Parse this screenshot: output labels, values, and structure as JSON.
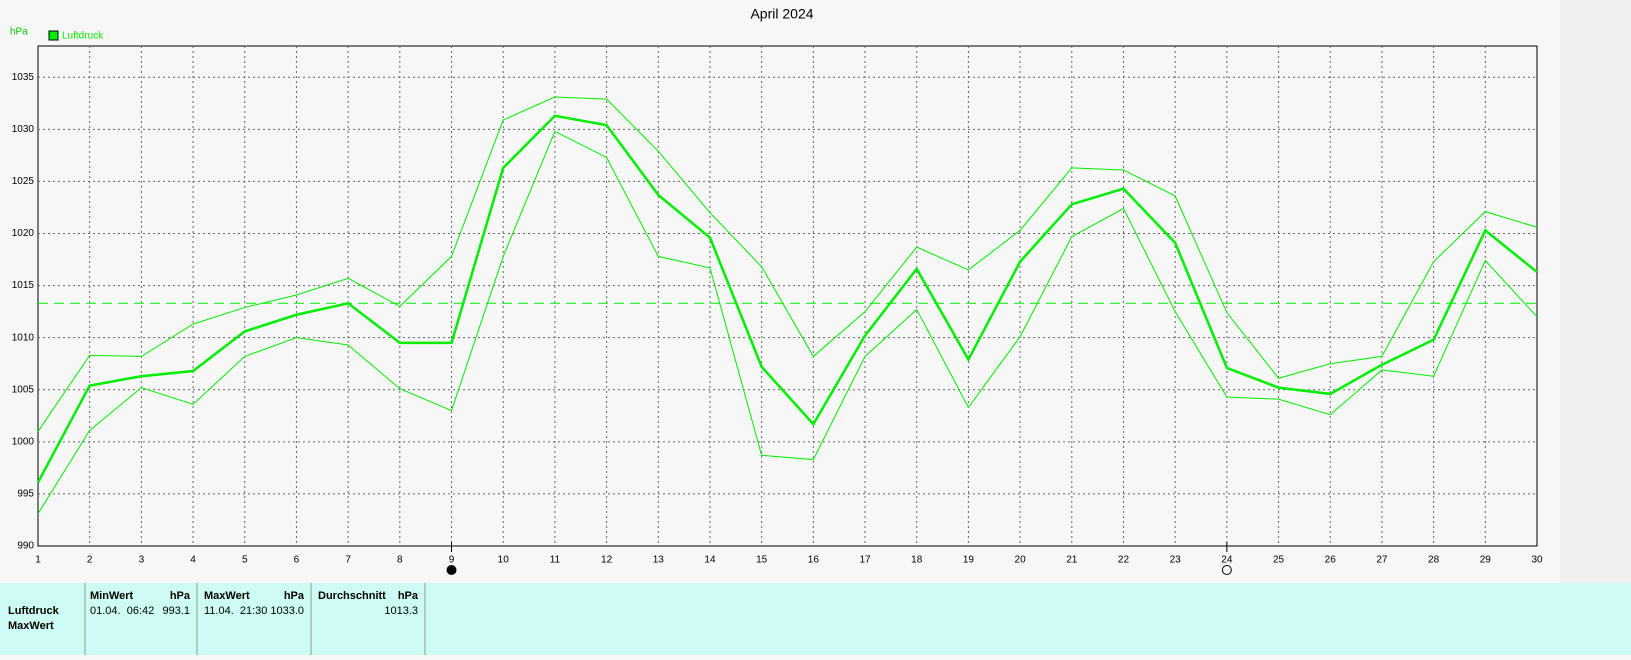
{
  "chart_data": {
    "type": "line",
    "title": "April 2024",
    "y_unit": "hPa",
    "x": [
      1,
      2,
      3,
      4,
      5,
      6,
      7,
      8,
      9,
      10,
      11,
      12,
      13,
      14,
      15,
      16,
      17,
      18,
      19,
      20,
      21,
      22,
      23,
      24,
      25,
      26,
      27,
      28,
      29,
      30
    ],
    "xlim": [
      1,
      30
    ],
    "xticks": [
      1,
      2,
      3,
      4,
      5,
      6,
      7,
      8,
      9,
      10,
      11,
      12,
      13,
      14,
      15,
      16,
      17,
      18,
      19,
      20,
      21,
      22,
      23,
      24,
      25,
      26,
      27,
      28,
      29,
      30
    ],
    "ylim": [
      990,
      1038
    ],
    "yticks": [
      990,
      995,
      1000,
      1005,
      1010,
      1015,
      1020,
      1025,
      1030,
      1035
    ],
    "grid": true,
    "legend": "top-left",
    "average": 1013.3,
    "series": [
      {
        "name": "Luftdruck",
        "color": "#00ee00",
        "values": [
          996.1,
          1005.4,
          1006.3,
          1006.8,
          1010.6,
          1012.2,
          1013.3,
          1009.5,
          1009.5,
          1026.3,
          1031.3,
          1030.4,
          1023.7,
          1019.6,
          1007.2,
          1001.7,
          1010.2,
          1016.6,
          1007.9,
          1017.3,
          1022.8,
          1024.3,
          1019.1,
          1007.1,
          1005.2,
          1004.6,
          1007.4,
          1009.8,
          1020.3,
          1016.3
        ]
      },
      {
        "color": "#00ee00",
        "values": [
          1001.0,
          1008.3,
          1008.2,
          1011.3,
          1012.9,
          1014.1,
          1015.7,
          1013.0,
          1017.8,
          1030.9,
          1033.1,
          1032.9,
          1027.9,
          1022.0,
          1016.8,
          1008.2,
          1012.5,
          1018.7,
          1016.5,
          1020.3,
          1026.3,
          1026.1,
          1023.6,
          1012.4,
          1006.1,
          1007.5,
          1008.2,
          1017.3,
          1022.1,
          1020.6
        ]
      },
      {
        "color": "#00ee00",
        "values": [
          993.1,
          1001.1,
          1005.2,
          1003.6,
          1008.2,
          1010.0,
          1009.3,
          1005.1,
          1003.0,
          1017.8,
          1029.8,
          1027.3,
          1017.8,
          1016.7,
          998.7,
          998.3,
          1008.2,
          1012.7,
          1003.3,
          1010.1,
          1019.7,
          1022.4,
          1012.5,
          1004.3,
          1004.1,
          1002.6,
          1006.9,
          1006.3,
          1017.4,
          1012.0
        ]
      }
    ]
  },
  "stats": {
    "headers": [
      [
        "MinWert",
        "hPa"
      ],
      [
        "MaxWert",
        "hPa"
      ],
      [
        "Durchschnitt",
        "hPa"
      ]
    ],
    "row_label": "Luftdruck",
    "min_time": "01.04.  06:42",
    "min": "993.1",
    "max_time": "11.04.  21:30",
    "max": "1033.0",
    "next_row_label": "MaxWert"
  }
}
